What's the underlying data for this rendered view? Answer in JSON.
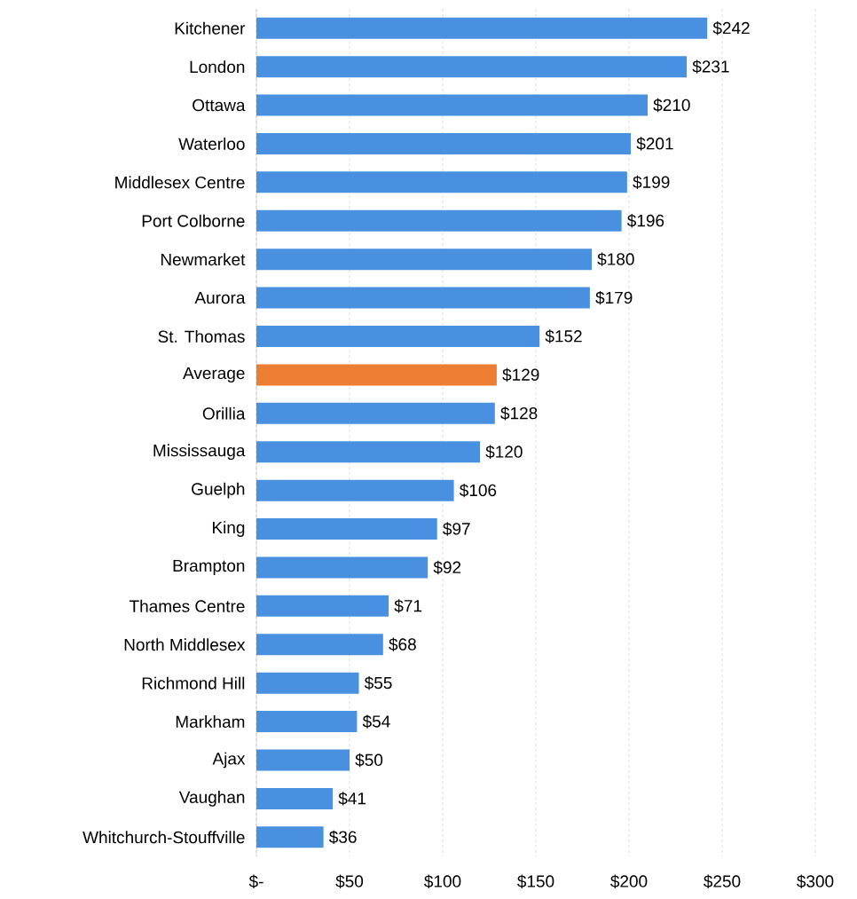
{
  "chart_data": {
    "type": "bar",
    "orientation": "horizontal",
    "categories": [
      "Kitchener",
      "London",
      "Ottawa",
      "Waterloo",
      "Middlesex Centre",
      "Port Colborne",
      "Newmarket",
      "Aurora",
      "St. Thomas",
      "Average",
      "Orillia",
      "Mississauga",
      "Guelph",
      "King",
      "Brampton",
      "Thames Centre",
      "North Middlesex",
      "Richmond Hill",
      "Markham",
      "Ajax",
      "Vaughan",
      "Whitchurch-Stouffville"
    ],
    "values": [
      242,
      231,
      210,
      201,
      199,
      196,
      180,
      179,
      152,
      129,
      128,
      120,
      106,
      97,
      92,
      71,
      68,
      55,
      54,
      50,
      41,
      36
    ],
    "value_labels": [
      "$242",
      "$231",
      "$210",
      "$201",
      "$199",
      "$196",
      "$180",
      "$179",
      "$152",
      "$129",
      "$128",
      "$120",
      "$106",
      "$97",
      "$92",
      "$71",
      "$68",
      "$55",
      "$54",
      "$50",
      "$41",
      "$36"
    ],
    "colors": [
      "#4a90e0",
      "#4a90e0",
      "#4a90e0",
      "#4a90e0",
      "#4a90e0",
      "#4a90e0",
      "#4a90e0",
      "#4a90e0",
      "#4a90e0",
      "#ed7d31",
      "#4a90e0",
      "#4a90e0",
      "#4a90e0",
      "#4a90e0",
      "#4a90e0",
      "#4a90e0",
      "#4a90e0",
      "#4a90e0",
      "#4a90e0",
      "#4a90e0",
      "#4a90e0",
      "#4a90e0"
    ],
    "xlim": [
      0,
      300
    ],
    "xticks": [
      {
        "value": 0,
        "label": "$-"
      },
      {
        "value": 50,
        "label": "$50"
      },
      {
        "value": 100,
        "label": "$100"
      },
      {
        "value": 150,
        "label": "$150"
      },
      {
        "value": 200,
        "label": "$200"
      },
      {
        "value": 250,
        "label": "$250"
      },
      {
        "value": 300,
        "label": "$300"
      }
    ],
    "grid": "x"
  }
}
